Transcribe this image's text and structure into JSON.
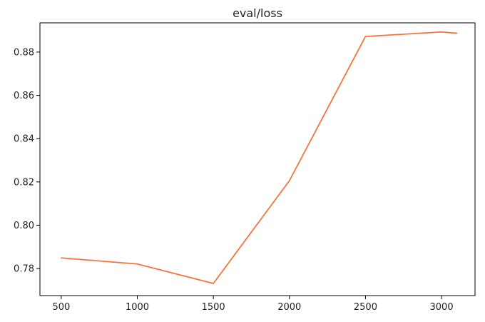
{
  "chart_data": {
    "type": "line",
    "title": "eval/loss",
    "xlabel": "",
    "ylabel": "",
    "x_ticks": [
      500,
      1000,
      1500,
      2000,
      2500,
      3000
    ],
    "y_ticks": [
      0.78,
      0.8,
      0.82,
      0.84,
      0.86,
      0.88
    ],
    "xlim": [
      360,
      3220
    ],
    "ylim": [
      0.7675,
      0.8935
    ],
    "grid": false,
    "series": [
      {
        "color": "#f4743b",
        "x": [
          500,
          1000,
          1500,
          2000,
          2500,
          3000,
          3100
        ],
        "y": [
          0.7849,
          0.7821,
          0.7731,
          0.8206,
          0.8872,
          0.8893,
          0.8887
        ]
      }
    ]
  }
}
